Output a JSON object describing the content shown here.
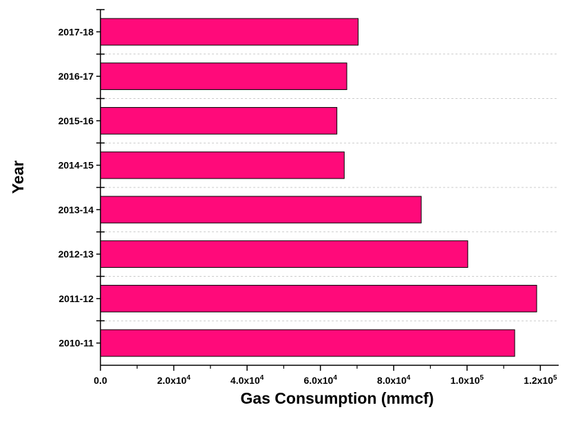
{
  "chart_data": {
    "type": "bar",
    "orientation": "horizontal",
    "categories": [
      "2010-11",
      "2011-12",
      "2012-13",
      "2013-14",
      "2014-15",
      "2015-16",
      "2016-17",
      "2017-18"
    ],
    "values": [
      113000,
      119000,
      100200,
      87500,
      66500,
      64500,
      67200,
      70300
    ],
    "xlabel": "Gas Consumption (mmcf)",
    "ylabel": "Year",
    "xlim": [
      0,
      125000
    ],
    "x_ticks": [
      {
        "value": 0,
        "base": "0.0",
        "exp": ""
      },
      {
        "value": 20000,
        "base": "2.0x10",
        "exp": "4"
      },
      {
        "value": 40000,
        "base": "4.0x10",
        "exp": "4"
      },
      {
        "value": 60000,
        "base": "6.0x10",
        "exp": "4"
      },
      {
        "value": 80000,
        "base": "8.0x10",
        "exp": "4"
      },
      {
        "value": 100000,
        "base": "1.0x10",
        "exp": "5"
      },
      {
        "value": 120000,
        "base": "1.2x10",
        "exp": "5"
      }
    ],
    "bar_color": "#ff0a7a",
    "bar_stroke": "#000000",
    "grid": "horizontal-dashed",
    "legend": "none"
  }
}
